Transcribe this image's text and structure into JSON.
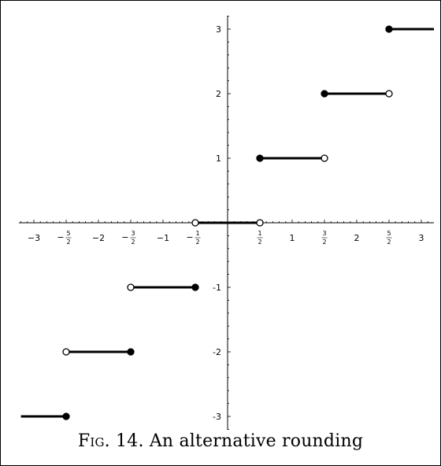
{
  "chart_data": {
    "type": "line",
    "title": "",
    "xlabel": "",
    "ylabel": "",
    "xlim": [
      -3.2,
      3.2
    ],
    "ylim": [
      -3.2,
      3.2
    ],
    "grid": false,
    "x_ticks": [
      {
        "value": -3,
        "label": "−3"
      },
      {
        "value": -2.5,
        "label": "5/2",
        "sign": "−"
      },
      {
        "value": -2,
        "label": "−2"
      },
      {
        "value": -1.5,
        "label": "3/2",
        "sign": "−"
      },
      {
        "value": -1,
        "label": "−1"
      },
      {
        "value": -0.5,
        "label": "1/2",
        "sign": "−"
      },
      {
        "value": 0.5,
        "label": "1/2",
        "sign": ""
      },
      {
        "value": 1,
        "label": "1"
      },
      {
        "value": 1.5,
        "label": "3/2",
        "sign": ""
      },
      {
        "value": 2,
        "label": "2"
      },
      {
        "value": 2.5,
        "label": "5/2",
        "sign": ""
      },
      {
        "value": 3,
        "label": "3"
      }
    ],
    "y_ticks": [
      {
        "value": 3,
        "label": "3"
      },
      {
        "value": 2,
        "label": "2"
      },
      {
        "value": 1,
        "label": "1"
      },
      {
        "value": -1,
        "label": "-1"
      },
      {
        "value": -2,
        "label": "-2"
      },
      {
        "value": -3,
        "label": "-3"
      }
    ],
    "segments": [
      {
        "x0": -3.2,
        "x1": -2.5,
        "y": -3,
        "left": "none",
        "right": "closed"
      },
      {
        "x0": -2.5,
        "x1": -1.5,
        "y": -2,
        "left": "open",
        "right": "closed"
      },
      {
        "x0": -1.5,
        "x1": -0.5,
        "y": -1,
        "left": "open",
        "right": "closed"
      },
      {
        "x0": -0.5,
        "x1": 0.5,
        "y": 0,
        "left": "open",
        "right": "open"
      },
      {
        "x0": 0.5,
        "x1": 1.5,
        "y": 1,
        "left": "closed",
        "right": "open"
      },
      {
        "x0": 1.5,
        "x1": 2.5,
        "y": 2,
        "left": "closed",
        "right": "open"
      },
      {
        "x0": 2.5,
        "x1": 3.2,
        "y": 3,
        "left": "closed",
        "right": "none"
      }
    ]
  },
  "caption": {
    "fig_label": "Fig. 14.",
    "text": "An alternative rounding"
  }
}
